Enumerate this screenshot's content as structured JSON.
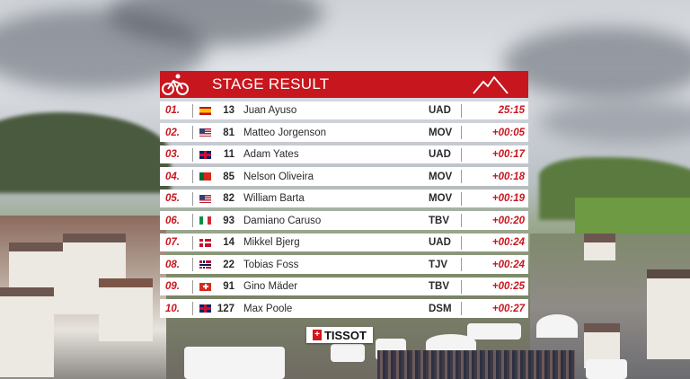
{
  "header": {
    "title": "STAGE RESULT"
  },
  "sponsor": {
    "logo_text": "TISSOT"
  },
  "results": [
    {
      "pos": "01.",
      "flag": "es",
      "num": "13",
      "name": "Juan Ayuso",
      "team": "UAD",
      "time": "25:15"
    },
    {
      "pos": "02.",
      "flag": "us",
      "num": "81",
      "name": "Matteo Jorgenson",
      "team": "MOV",
      "time": "+00:05"
    },
    {
      "pos": "03.",
      "flag": "gb",
      "num": "11",
      "name": "Adam Yates",
      "team": "UAD",
      "time": "+00:17"
    },
    {
      "pos": "04.",
      "flag": "pt",
      "num": "85",
      "name": "Nelson Oliveira",
      "team": "MOV",
      "time": "+00:18"
    },
    {
      "pos": "05.",
      "flag": "us",
      "num": "82",
      "name": "William Barta",
      "team": "MOV",
      "time": "+00:19"
    },
    {
      "pos": "06.",
      "flag": "it",
      "num": "93",
      "name": "Damiano Caruso",
      "team": "TBV",
      "time": "+00:20"
    },
    {
      "pos": "07.",
      "flag": "dk",
      "num": "14",
      "name": "Mikkel Bjerg",
      "team": "UAD",
      "time": "+00:24"
    },
    {
      "pos": "08.",
      "flag": "no",
      "num": "22",
      "name": "Tobias Foss",
      "team": "TJV",
      "time": "+00:24"
    },
    {
      "pos": "09.",
      "flag": "ch",
      "num": "91",
      "name": "Gino Mäder",
      "team": "TBV",
      "time": "+00:25"
    },
    {
      "pos": "10.",
      "flag": "gb",
      "num": "127",
      "name": "Max Poole",
      "team": "DSM",
      "time": "+00:27"
    }
  ],
  "colors": {
    "accent": "#c8161e"
  }
}
